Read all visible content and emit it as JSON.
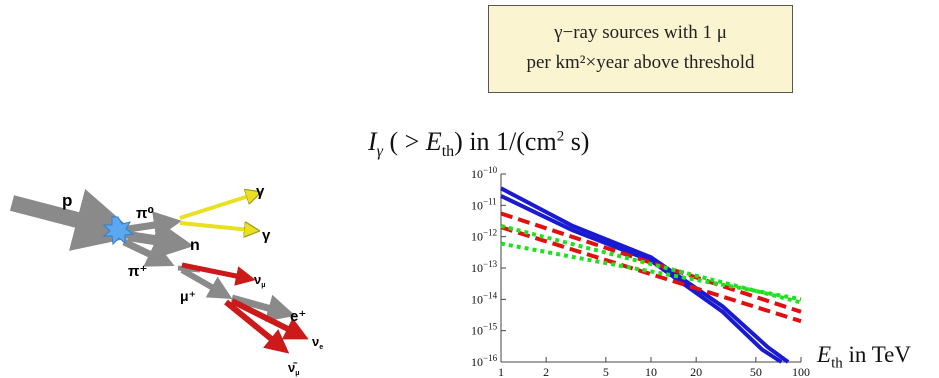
{
  "info_box": {
    "line1": "γ−ray sources with 1 μ",
    "line2": "per km²×year above threshold"
  },
  "diagram": {
    "particles": {
      "proton": "p",
      "pi0": "π⁰",
      "gamma1": "γ",
      "gamma2": "γ",
      "neutron": "n",
      "pi_plus": "π⁺",
      "nu_mu": "ν",
      "nu_mu_sub": "μ",
      "mu_plus": "μ⁺",
      "positron": "e⁺",
      "nu_e": "ν",
      "nu_e_sub": "e",
      "nu_mu_bar": "ν̄",
      "nu_mu_bar_sub": "μ"
    },
    "colors": {
      "hadron": "#8a8a8a",
      "gamma": "#e8e020",
      "neutrino": "#cc1a1a",
      "burst": "#5ba8f0"
    }
  },
  "chart_data": {
    "type": "line",
    "title": "I_γ ( > E_th) in 1/(cm² s)",
    "xlabel": "E_th in TeV",
    "x_scale": "log",
    "y_scale": "log",
    "xlim": [
      1,
      100
    ],
    "ylim": [
      1e-16,
      1e-10
    ],
    "x_ticks": [
      1,
      2,
      5,
      10,
      20,
      50,
      100
    ],
    "y_tick_exponents": [
      -10,
      -11,
      -12,
      -13,
      -14,
      -15,
      -16
    ],
    "y_tick_base": "10",
    "grid": false,
    "series": [
      {
        "color": "#1a1ad0",
        "style": "solid",
        "points": [
          [
            1,
            3.5e-11
          ],
          [
            3,
            2.2e-12
          ],
          [
            10,
            2.2e-13
          ],
          [
            30,
            6e-15
          ],
          [
            60,
            3e-16
          ],
          [
            82,
            1e-16
          ]
        ]
      },
      {
        "color": "#1a1ad0",
        "style": "solid",
        "points": [
          [
            1,
            2e-11
          ],
          [
            3,
            1.6e-12
          ],
          [
            10,
            1.7e-13
          ],
          [
            30,
            4e-15
          ],
          [
            55,
            2.5e-16
          ],
          [
            74,
            1e-16
          ]
        ]
      },
      {
        "color": "#e01010",
        "style": "dashed",
        "points": [
          [
            1,
            5.5e-12
          ],
          [
            100,
            4e-15
          ]
        ]
      },
      {
        "color": "#e01010",
        "style": "dashed",
        "points": [
          [
            1,
            2e-12
          ],
          [
            100,
            2e-15
          ]
        ]
      },
      {
        "color": "#20e020",
        "style": "dotted",
        "points": [
          [
            1,
            2.2e-12
          ],
          [
            100,
            8e-15
          ]
        ]
      },
      {
        "color": "#20e020",
        "style": "dotted",
        "points": [
          [
            1,
            6e-13
          ],
          [
            100,
            1e-14
          ]
        ]
      }
    ]
  }
}
